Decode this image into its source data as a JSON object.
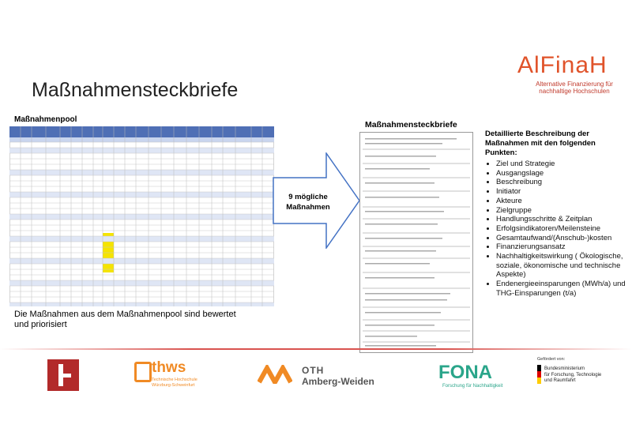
{
  "header": {
    "logo": "AlFinaH",
    "logo_subtitle": [
      "Alternative Finanzierung für",
      "nachhaltige Hochschulen"
    ],
    "title": "Maßnahmensteckbriefe"
  },
  "left": {
    "heading": "Maßnahmenpool",
    "caption": "Die Maßnahmen aus dem Maßnahmenpool  sind bewertet und priorisiert"
  },
  "arrow": {
    "label": [
      "9 mögliche",
      "Maßnahmen"
    ]
  },
  "middle": {
    "heading": "Maßnahmensteckbriefe"
  },
  "right": {
    "intro": "Detaillierte Beschreibung der Maßnahmen mit den folgenden Punkten:",
    "items": [
      "Ziel und Strategie",
      "Ausgangslage",
      "Beschreibung",
      "Initiator",
      "Akteure",
      "Zielgruppe",
      "Handlungsschritte & Zeitplan",
      "Erfolgsindikatoren/Meilensteine",
      "Gesamtaufwand/(Anschub-)kosten",
      "Finanzierungsansatz",
      "Nachhaltigkeitswirkung ( Ökologische, soziale, ökonomische und technische Aspekte)",
      "Endenergieeinsparungen (MWh/a) und THG-Einsparungen (t/a)"
    ]
  },
  "footer": {
    "thws": "thws",
    "thws_sub": [
      "Technische Hochschule",
      "Würzburg-Schweinfurt"
    ],
    "oth": "OTH",
    "oth_sub": "Amberg-Weiden",
    "fona": "FONA",
    "fona_sub": "Forschung für Nachhaltigkeit",
    "funded": "Gefördert von:",
    "ministry": [
      "Bundesministerium",
      "für Forschung, Technologie",
      "und Raumfahrt"
    ]
  }
}
